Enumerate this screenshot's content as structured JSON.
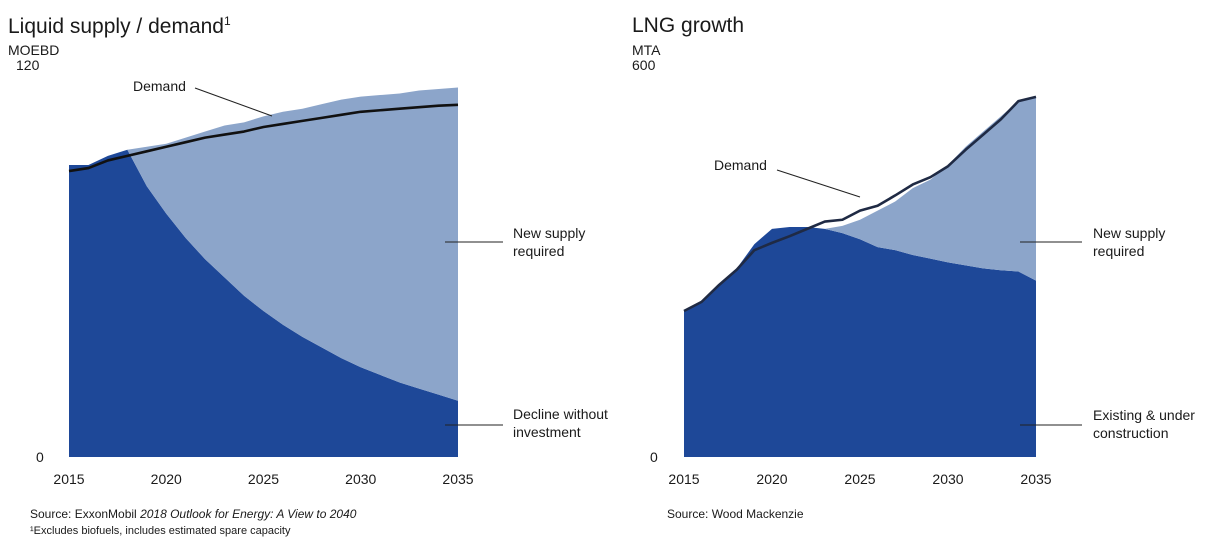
{
  "left": {
    "title": "Liquid supply / demand",
    "title_sup": "1",
    "unit": "MOEBD",
    "source_prefix": "Source: ExxonMobil ",
    "source_italic": "2018 Outlook for Energy: A View to 2040",
    "footnote": "¹Excludes biofuels, includes estimated spare capacity",
    "chart_data": {
      "type": "area",
      "title": "Liquid supply / demand",
      "ylabel": "MOEBD",
      "xlim": [
        2015,
        2035
      ],
      "ylim": [
        0,
        120
      ],
      "x_ticks": [
        2015,
        2020,
        2025,
        2030,
        2035
      ],
      "y_tick_labels": [
        "120",
        "0"
      ],
      "x": [
        2015,
        2016,
        2017,
        2018,
        2019,
        2020,
        2021,
        2022,
        2023,
        2024,
        2025,
        2026,
        2027,
        2028,
        2029,
        2030,
        2031,
        2032,
        2033,
        2034,
        2035
      ],
      "series": [
        {
          "name": "Decline without investment",
          "kind": "area",
          "color": "#1e4898",
          "values": [
            96,
            96,
            99,
            101,
            89,
            80,
            72,
            65,
            59,
            53,
            48,
            43.5,
            39.5,
            36,
            32.5,
            29.5,
            27,
            24.5,
            22.5,
            20.5,
            18.5
          ]
        },
        {
          "name": "New supply required",
          "kind": "area",
          "color": "#8ca5ca",
          "values": [
            0,
            0,
            0,
            0,
            13,
            23,
            33,
            42,
            50,
            57,
            64,
            70,
            75,
            80,
            85,
            89,
            92,
            95,
            98,
            100.5,
            103
          ]
        },
        {
          "name": "Demand",
          "kind": "line",
          "color": "#111111",
          "values": [
            94,
            95,
            97.5,
            99,
            100.5,
            102,
            103.5,
            105,
            106,
            107,
            108.5,
            109.5,
            110.5,
            111.5,
            112.5,
            113.5,
            114,
            114.5,
            115,
            115.5,
            115.8
          ]
        }
      ],
      "annotations": [
        {
          "label": "Demand"
        },
        {
          "label": "New supply\nrequired"
        },
        {
          "label": "Decline without\ninvestment"
        }
      ]
    }
  },
  "right": {
    "title": "LNG growth",
    "unit": "MTA",
    "source": "Source: Wood Mackenzie",
    "chart_data": {
      "type": "area",
      "title": "LNG growth",
      "ylabel": "MTA",
      "xlim": [
        2015,
        2035
      ],
      "ylim": [
        0,
        600
      ],
      "x_ticks": [
        2015,
        2020,
        2025,
        2030,
        2035
      ],
      "y_tick_labels": [
        "600",
        "0"
      ],
      "x": [
        2015,
        2016,
        2017,
        2018,
        2019,
        2020,
        2021,
        2022,
        2023,
        2024,
        2025,
        2026,
        2027,
        2028,
        2029,
        2030,
        2031,
        2032,
        2033,
        2034,
        2035
      ],
      "series": [
        {
          "name": "Existing & under construction",
          "kind": "area",
          "color": "#1e4898",
          "values": [
            240,
            255,
            285,
            310,
            350,
            375,
            378,
            378,
            375,
            368,
            358,
            345,
            340,
            332,
            326,
            320,
            315,
            310,
            307,
            305,
            290
          ]
        },
        {
          "name": "New supply required",
          "kind": "area",
          "color": "#8ca5ca",
          "values": [
            0,
            0,
            0,
            0,
            0,
            0,
            0,
            0,
            0,
            12,
            32,
            60,
            80,
            110,
            130,
            160,
            195,
            225,
            253,
            280,
            302
          ]
        },
        {
          "name": "Demand",
          "kind": "line",
          "color": "#1f2a44",
          "values": [
            240,
            255,
            283,
            308,
            340,
            352,
            363,
            375,
            387,
            390,
            405,
            413,
            430,
            448,
            460,
            478,
            505,
            530,
            555,
            585,
            592
          ]
        }
      ],
      "annotations": [
        {
          "label": "Demand"
        },
        {
          "label": "New supply\nrequired"
        },
        {
          "label": "Existing & under\nconstruction"
        }
      ]
    }
  }
}
